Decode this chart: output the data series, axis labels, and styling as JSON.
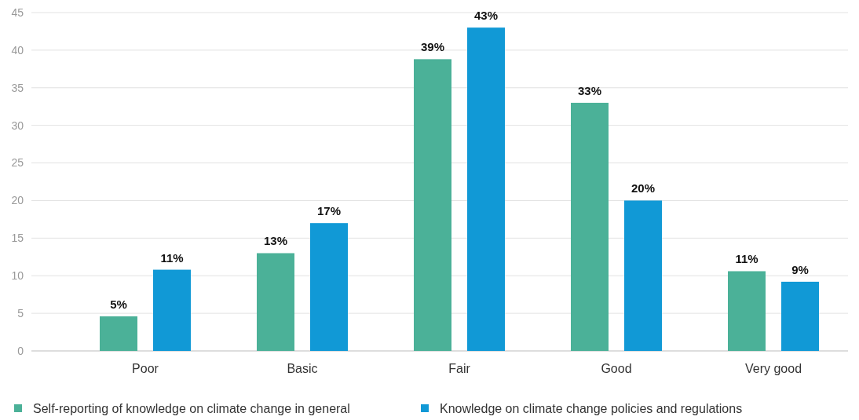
{
  "chart_data": {
    "type": "bar",
    "categories": [
      "Poor",
      "Basic",
      "Fair",
      "Good",
      "Very good"
    ],
    "series": [
      {
        "name": "Self-reporting of knowledge on climate change in general",
        "color": "#4bb198",
        "values": [
          4.6,
          13,
          38.8,
          33,
          10.6
        ],
        "value_labels": [
          "5%",
          "13%",
          "39%",
          "33%",
          "11%"
        ]
      },
      {
        "name": "Knowledge on climate change policies and regulations",
        "color": "#1199d6",
        "values": [
          10.8,
          17,
          43,
          20,
          9.2
        ],
        "value_labels": [
          "11%",
          "17%",
          "43%",
          "20%",
          "9%"
        ]
      }
    ],
    "ylim": [
      0,
      45
    ],
    "yticks": [
      0,
      5,
      10,
      15,
      20,
      25,
      30,
      35,
      40,
      45
    ],
    "grid": "y",
    "legend": "bottom"
  }
}
